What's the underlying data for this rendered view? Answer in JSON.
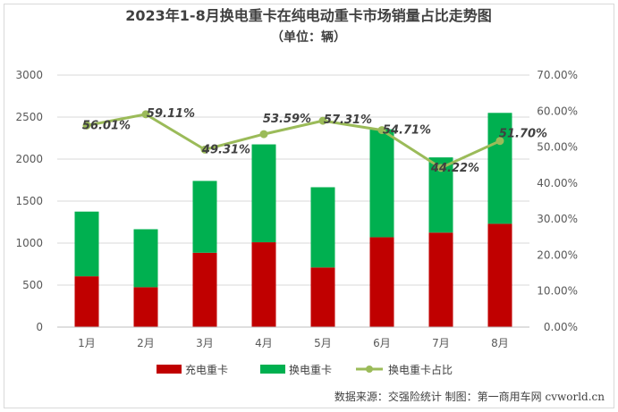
{
  "colors": {
    "charge": "#c00000",
    "swap": "#00b050",
    "share_line": "#9bbb59",
    "grid": "#d9d9d9",
    "axis": "#bfbfbf"
  },
  "source": "数据来源：交强险统计 制图：第一商用车网 cvworld.cn",
  "chart_data": {
    "type": "bar",
    "title": "2023年1-8月换电重卡在纯电动重卡市场销量占比走势图",
    "subtitle": "（单位：辆）",
    "categories": [
      "1月",
      "2月",
      "3月",
      "4月",
      "5月",
      "6月",
      "7月",
      "8月"
    ],
    "stacked": true,
    "series": [
      {
        "name": "充电重卡",
        "type": "bar",
        "axis": "left",
        "values": [
          605,
          475,
          885,
          1010,
          710,
          1070,
          1125,
          1230
        ]
      },
      {
        "name": "换电重卡",
        "type": "bar",
        "axis": "left",
        "values": [
          770,
          690,
          855,
          1165,
          955,
          1285,
          895,
          1320
        ]
      },
      {
        "name": "换电重卡占比",
        "type": "line",
        "axis": "right",
        "values": [
          56.01,
          59.11,
          49.31,
          53.59,
          57.31,
          54.71,
          44.22,
          51.7
        ],
        "labels": [
          "56.01%",
          "59.11%",
          "49.31%",
          "53.59%",
          "57.31%",
          "54.71%",
          "44.22%",
          "51.70%"
        ]
      }
    ],
    "y_left": {
      "ylim": [
        0,
        3000
      ],
      "ticks": [
        "0",
        "500",
        "1000",
        "1500",
        "2000",
        "2500",
        "3000"
      ]
    },
    "y_right": {
      "ylim": [
        0,
        70
      ],
      "ticks": [
        "0.00%",
        "10.00%",
        "20.00%",
        "30.00%",
        "40.00%",
        "50.00%",
        "60.00%",
        "70.00%"
      ]
    },
    "grid": true,
    "legend": "bottom"
  }
}
